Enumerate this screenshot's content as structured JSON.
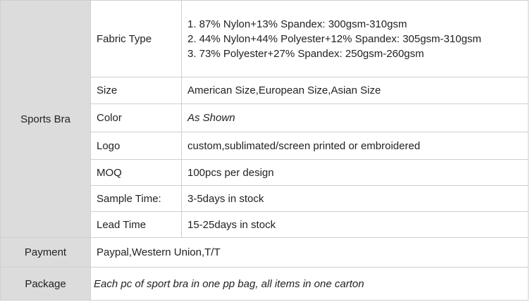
{
  "section": "Sports Bra",
  "rows": [
    {
      "label": "Fabric Type",
      "lines": [
        "1. 87% Nylon+13% Spandex: 300gsm-310gsm",
        "2. 44% Nylon+44% Polyester+12% Spandex: 305gsm-310gsm",
        "3. 73% Polyester+27% Spandex: 250gsm-260gsm"
      ]
    },
    {
      "label": "Size",
      "value": "American Size,European Size,Asian Size"
    },
    {
      "label": "Color",
      "value": "As Shown"
    },
    {
      "label": "Logo",
      "value": "custom,sublimated/screen printed or embroidered"
    },
    {
      "label": "MOQ",
      "value": "100pcs per design"
    },
    {
      "label": "Sample Time:",
      "value": "3-5days in stock"
    },
    {
      "label": "Lead Time",
      "value": "15-25days in stock"
    }
  ],
  "payment": {
    "label": "Payment",
    "value": "Paypal,Western Union,T/T"
  },
  "package": {
    "label": "Package",
    "value": "Each pc of sport bra in one pp bag, all items in one carton"
  }
}
